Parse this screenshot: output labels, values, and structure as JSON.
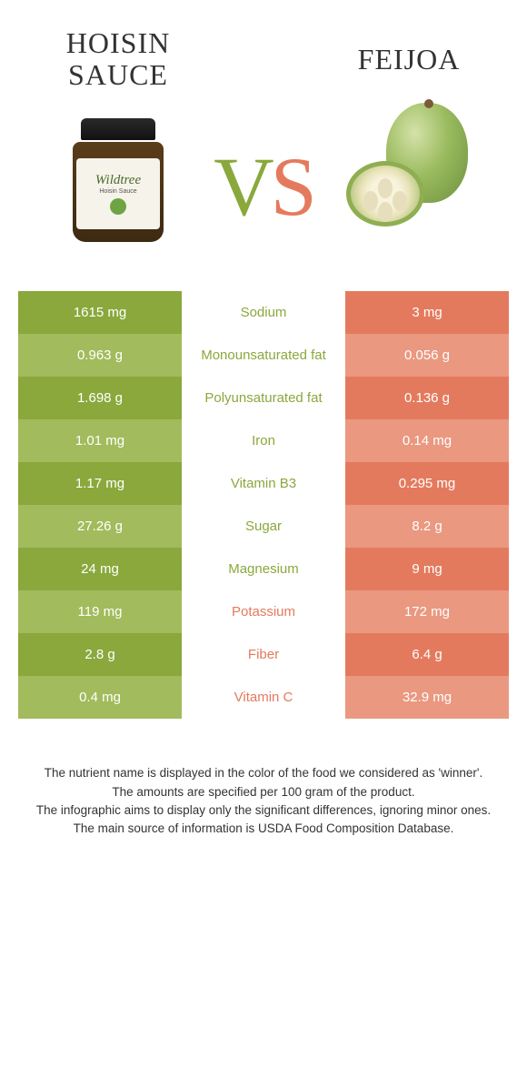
{
  "colors": {
    "left_dark": "#8aa83c",
    "left_light": "#a2bb5c",
    "right_dark": "#e47a5d",
    "right_light": "#ea9880",
    "mid_text_left": "#8aa83c",
    "mid_text_right": "#e47a5d"
  },
  "left": {
    "title": "HOISIN SAUCE",
    "brand": "Wildtree",
    "brand_sub": "Hoisin Sauce"
  },
  "right": {
    "title": "FEIJOA"
  },
  "vs": {
    "v": "V",
    "s": "S"
  },
  "rows": [
    {
      "left": "1615 mg",
      "label": "Sodium",
      "right": "3 mg",
      "winner": "left"
    },
    {
      "left": "0.963 g",
      "label": "Monounsaturated fat",
      "right": "0.056 g",
      "winner": "left"
    },
    {
      "left": "1.698 g",
      "label": "Polyunsaturated fat",
      "right": "0.136 g",
      "winner": "left"
    },
    {
      "left": "1.01 mg",
      "label": "Iron",
      "right": "0.14 mg",
      "winner": "left"
    },
    {
      "left": "1.17 mg",
      "label": "Vitamin B3",
      "right": "0.295 mg",
      "winner": "left"
    },
    {
      "left": "27.26 g",
      "label": "Sugar",
      "right": "8.2 g",
      "winner": "left"
    },
    {
      "left": "24 mg",
      "label": "Magnesium",
      "right": "9 mg",
      "winner": "left"
    },
    {
      "left": "119 mg",
      "label": "Potassium",
      "right": "172 mg",
      "winner": "right"
    },
    {
      "left": "2.8 g",
      "label": "Fiber",
      "right": "6.4 g",
      "winner": "right"
    },
    {
      "left": "0.4 mg",
      "label": "Vitamin C",
      "right": "32.9 mg",
      "winner": "right"
    }
  ],
  "footnotes": [
    "The nutrient name is displayed in the color of the food we considered as 'winner'.",
    "The amounts are specified per 100 gram of the product.",
    "The infographic aims to display only the significant differences, ignoring minor ones.",
    "The main source of information is USDA Food Composition Database."
  ]
}
